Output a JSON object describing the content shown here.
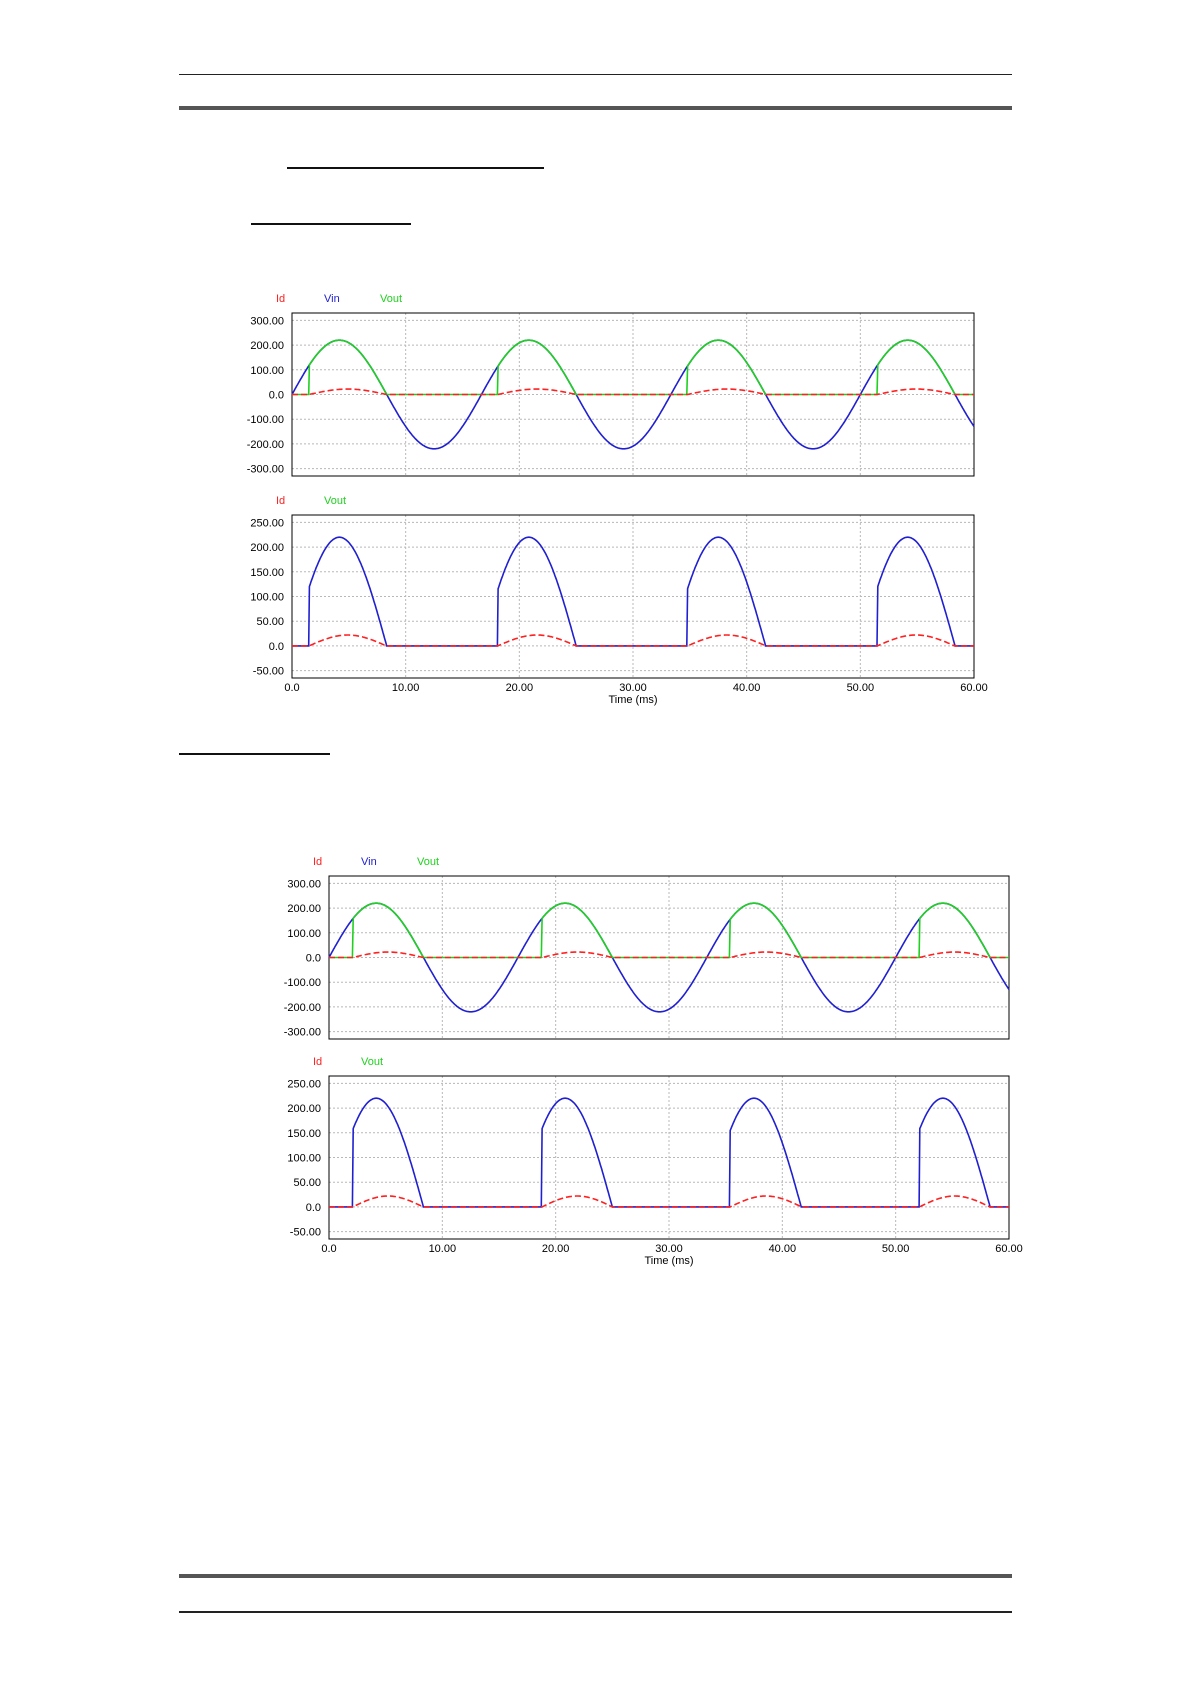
{
  "colors": {
    "id": "#ff2020",
    "vin": "#2020d0",
    "vout": "#20d020",
    "grid": "#b8b8b8",
    "frame": "#000000"
  },
  "chart_data": [
    {
      "type": "line",
      "legend": [
        "Id",
        "Vin",
        "Vout"
      ],
      "xlim": [
        0,
        60
      ],
      "ylim": [
        -330,
        330
      ],
      "yticks": [
        -300,
        -200,
        -100,
        0,
        100,
        200,
        300
      ],
      "ytick_labels": [
        "-300.00",
        "-200.00",
        "-100.00",
        "0.0",
        "100.00",
        "200.00",
        "300.00"
      ],
      "xticks": [
        0,
        10,
        20,
        30,
        40,
        50,
        60
      ],
      "xtick_labels": [],
      "xlabel": "",
      "grid": true,
      "series": [
        {
          "name": "Vin",
          "amplitude": 220,
          "frequency_hz": 60,
          "unit": "V"
        },
        {
          "name": "Vout",
          "amplitude": 220,
          "frequency_hz": 60,
          "conduction_ms": [
            [
              1.5,
              8.3
            ],
            [
              18.1,
              25.0
            ],
            [
              34.8,
              41.7
            ],
            [
              51.5,
              58.3
            ]
          ]
        },
        {
          "name": "Id",
          "peak": 22,
          "conduction_ms": [
            [
              1.5,
              8.3
            ],
            [
              18.1,
              25.0
            ],
            [
              34.8,
              41.7
            ],
            [
              51.5,
              58.3
            ]
          ]
        }
      ]
    },
    {
      "type": "line",
      "legend": [
        "Id",
        "Vout"
      ],
      "xlim": [
        0,
        60
      ],
      "ylim": [
        -65,
        265
      ],
      "yticks": [
        -50,
        0,
        50,
        100,
        150,
        200,
        250
      ],
      "ytick_labels": [
        "-50.00",
        "0.0",
        "50.00",
        "100.00",
        "150.00",
        "200.00",
        "250.00"
      ],
      "xticks": [
        0,
        10,
        20,
        30,
        40,
        50,
        60
      ],
      "xtick_labels": [
        "0.0",
        "10.00",
        "20.00",
        "30.00",
        "40.00",
        "50.00",
        "60.00"
      ],
      "xlabel": "Time (ms)",
      "grid": true,
      "series": [
        {
          "name": "Vout",
          "amplitude": 220,
          "frequency_hz": 60,
          "conduction_ms": [
            [
              1.5,
              8.3
            ],
            [
              18.1,
              25.0
            ],
            [
              34.8,
              41.7
            ],
            [
              51.5,
              58.3
            ]
          ]
        },
        {
          "name": "Id",
          "peak": 22,
          "conduction_ms": [
            [
              1.5,
              8.3
            ],
            [
              18.1,
              25.0
            ],
            [
              34.8,
              41.7
            ],
            [
              51.5,
              58.3
            ]
          ]
        }
      ]
    },
    {
      "type": "line",
      "legend": [
        "Id",
        "Vin",
        "Vout"
      ],
      "xlim": [
        0,
        60
      ],
      "ylim": [
        -330,
        330
      ],
      "yticks": [
        -300,
        -200,
        -100,
        0,
        100,
        200,
        300
      ],
      "ytick_labels": [
        "-300.00",
        "-200.00",
        "-100.00",
        "0.0",
        "100.00",
        "200.00",
        "300.00"
      ],
      "xticks": [
        0,
        10,
        20,
        30,
        40,
        50,
        60
      ],
      "xtick_labels": [],
      "xlabel": "",
      "grid": true,
      "series": [
        {
          "name": "Vin",
          "amplitude": 220,
          "frequency_hz": 60,
          "unit": "V"
        },
        {
          "name": "Vout",
          "amplitude": 220,
          "frequency_hz": 60,
          "conduction_ms": [
            [
              2.1,
              8.3
            ],
            [
              18.8,
              25.0
            ],
            [
              35.4,
              41.7
            ],
            [
              52.1,
              58.3
            ]
          ]
        },
        {
          "name": "Id",
          "peak": 22,
          "conduction_ms": [
            [
              2.1,
              8.3
            ],
            [
              18.8,
              25.0
            ],
            [
              35.4,
              41.7
            ],
            [
              52.1,
              58.3
            ]
          ]
        }
      ]
    },
    {
      "type": "line",
      "legend": [
        "Id",
        "Vout"
      ],
      "xlim": [
        0,
        60
      ],
      "ylim": [
        -65,
        265
      ],
      "yticks": [
        -50,
        0,
        50,
        100,
        150,
        200,
        250
      ],
      "ytick_labels": [
        "-50.00",
        "0.0",
        "50.00",
        "100.00",
        "150.00",
        "200.00",
        "250.00"
      ],
      "xticks": [
        0,
        10,
        20,
        30,
        40,
        50,
        60
      ],
      "xtick_labels": [
        "0.0",
        "10.00",
        "20.00",
        "30.00",
        "40.00",
        "50.00",
        "60.00"
      ],
      "xlabel": "Time (ms)",
      "grid": true,
      "series": [
        {
          "name": "Vout",
          "amplitude": 220,
          "frequency_hz": 60,
          "conduction_ms": [
            [
              2.1,
              8.3
            ],
            [
              18.8,
              25.0
            ],
            [
              35.4,
              41.7
            ],
            [
              52.1,
              58.3
            ]
          ]
        },
        {
          "name": "Id",
          "peak": 22,
          "conduction_ms": [
            [
              2.1,
              8.3
            ],
            [
              18.8,
              25.0
            ],
            [
              35.4,
              41.7
            ],
            [
              52.1,
              58.3
            ]
          ]
        }
      ]
    }
  ]
}
